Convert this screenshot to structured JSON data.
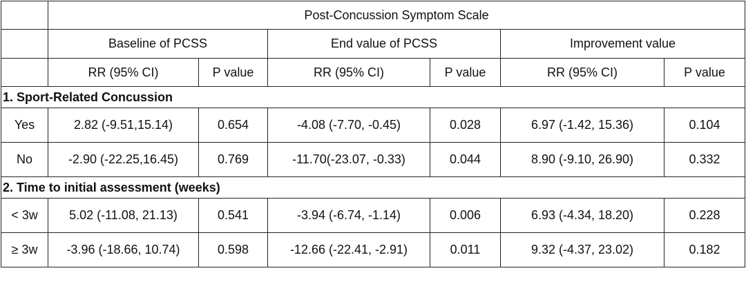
{
  "table": {
    "top_header": "Post-Concussion Symptom Scale",
    "groups": [
      "Baseline of PCSS",
      "End value of PCSS",
      "Improvement value"
    ],
    "sub_headers": [
      "RR (95% CI)",
      "P value",
      "RR (95% CI)",
      "P value",
      "RR (95% CI)",
      "P value"
    ],
    "sections": [
      {
        "title": "1. Sport-Related Concussion",
        "rows": [
          {
            "label": "Yes",
            "cells": [
              "2.82 (-9.51,15.14)",
              "0.654",
              "-4.08 (-7.70, -0.45)",
              "0.028",
              "6.97 (-1.42, 15.36)",
              "0.104"
            ]
          },
          {
            "label": "No",
            "cells": [
              "-2.90 (-22.25,16.45)",
              "0.769",
              "-11.70(-23.07, -0.33)",
              "0.044",
              "8.90 (-9.10, 26.90)",
              "0.332"
            ]
          }
        ]
      },
      {
        "title": "2. Time to initial assessment (weeks)",
        "rows": [
          {
            "label": "< 3w",
            "cells": [
              "5.02 (-11.08, 21.13)",
              "0.541",
              "-3.94 (-6.74, -1.14)",
              "0.006",
              "6.93 (-4.34, 18.20)",
              "0.228"
            ]
          },
          {
            "label": "≥ 3w",
            "cells": [
              "-3.96 (-18.66, 10.74)",
              "0.598",
              "-12.66 (-22.41, -2.91)",
              "0.011",
              "9.32 (-4.37, 23.02)",
              "0.182"
            ]
          }
        ]
      }
    ]
  }
}
